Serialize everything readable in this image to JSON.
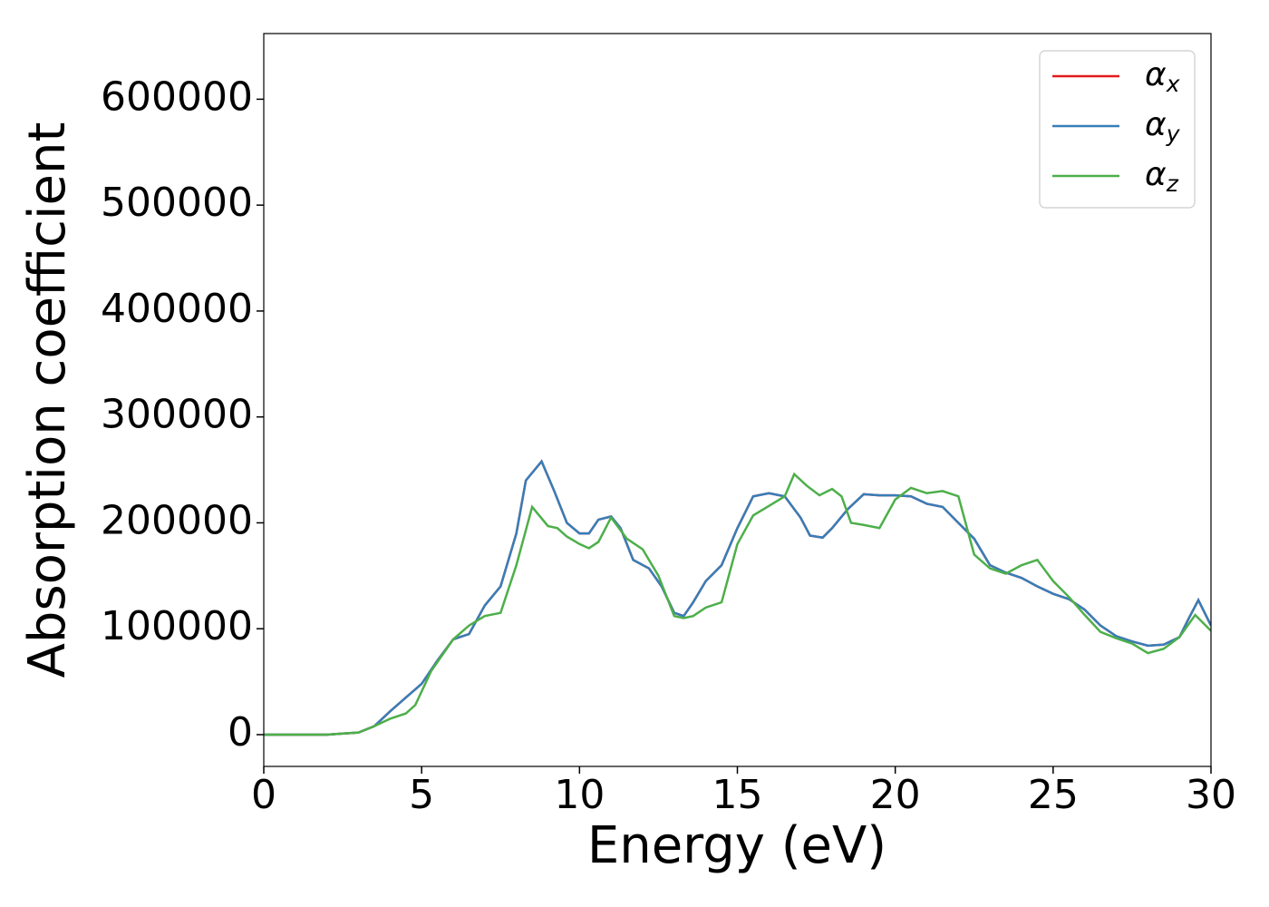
{
  "chart_data": {
    "type": "line",
    "xlabel": "Energy (eV)",
    "ylabel": "Absorption coefficient",
    "xlim": [
      0,
      30
    ],
    "xticks": [
      0,
      5,
      10,
      15,
      20,
      25,
      30
    ],
    "ylim": [
      -30000,
      662000
    ],
    "yticks": [
      0,
      100000,
      200000,
      300000,
      400000,
      500000,
      600000
    ],
    "grid": false,
    "legend": "upper right",
    "series": [
      {
        "name": "αx",
        "color": "#e41a1c",
        "x": [
          0,
          2,
          3,
          3.5,
          4,
          4.5,
          5,
          5.5,
          6,
          6.5,
          7,
          7.5,
          8,
          8.3,
          8.8,
          9.2,
          9.6,
          10,
          10.3,
          10.6,
          11,
          11.3,
          11.7,
          12.2,
          12.6,
          13,
          13.3,
          13.6,
          14,
          14.5,
          15,
          15.5,
          16,
          16.5,
          17,
          17.3,
          17.7,
          18,
          18.5,
          19,
          19.5,
          20,
          20.5,
          21,
          21.5,
          22,
          22.5,
          23,
          23.5,
          24,
          24.5,
          25,
          25.5,
          26,
          26.5,
          27,
          27.5,
          28,
          28.5,
          29,
          29.3,
          29.6,
          30
        ],
        "values": [
          0,
          0,
          2000,
          8000,
          22000,
          35000,
          48000,
          70000,
          90000,
          95000,
          122000,
          140000,
          190000,
          240000,
          258000,
          230000,
          200000,
          190000,
          190000,
          203000,
          206000,
          195000,
          165000,
          157000,
          140000,
          115000,
          112000,
          125000,
          145000,
          160000,
          195000,
          225000,
          228000,
          225000,
          205000,
          188000,
          186000,
          195000,
          213000,
          227000,
          226000,
          226000,
          225000,
          218000,
          215000,
          200000,
          185000,
          160000,
          153000,
          148000,
          140000,
          133000,
          128000,
          118000,
          103000,
          93000,
          88000,
          84000,
          85000,
          92000,
          110000,
          127000,
          103000
        ]
      },
      {
        "name": "αy",
        "color": "#377eb8",
        "x": [
          0,
          2,
          3,
          3.5,
          4,
          4.5,
          5,
          5.5,
          6,
          6.5,
          7,
          7.5,
          8,
          8.3,
          8.8,
          9.2,
          9.6,
          10,
          10.3,
          10.6,
          11,
          11.3,
          11.7,
          12.2,
          12.6,
          13,
          13.3,
          13.6,
          14,
          14.5,
          15,
          15.5,
          16,
          16.5,
          17,
          17.3,
          17.7,
          18,
          18.5,
          19,
          19.5,
          20,
          20.5,
          21,
          21.5,
          22,
          22.5,
          23,
          23.5,
          24,
          24.5,
          25,
          25.5,
          26,
          26.5,
          27,
          27.5,
          28,
          28.5,
          29,
          29.3,
          29.6,
          30
        ],
        "values": [
          0,
          0,
          2000,
          8000,
          22000,
          35000,
          48000,
          70000,
          90000,
          95000,
          122000,
          140000,
          190000,
          240000,
          258000,
          230000,
          200000,
          190000,
          190000,
          203000,
          206000,
          195000,
          165000,
          157000,
          140000,
          115000,
          112000,
          125000,
          145000,
          160000,
          195000,
          225000,
          228000,
          225000,
          205000,
          188000,
          186000,
          195000,
          213000,
          227000,
          226000,
          226000,
          225000,
          218000,
          215000,
          200000,
          185000,
          160000,
          153000,
          148000,
          140000,
          133000,
          128000,
          118000,
          103000,
          93000,
          88000,
          84000,
          85000,
          92000,
          110000,
          127000,
          103000
        ]
      },
      {
        "name": "αz",
        "color": "#4daf4a",
        "x": [
          0,
          2,
          3,
          3.5,
          4,
          4.5,
          4.8,
          5.3,
          6,
          6.5,
          7,
          7.5,
          8,
          8.5,
          9,
          9.3,
          9.6,
          10,
          10.3,
          10.6,
          11,
          11.5,
          12,
          12.5,
          13,
          13.3,
          13.6,
          14,
          14.5,
          15,
          15.5,
          16,
          16.5,
          16.8,
          17.2,
          17.6,
          18,
          18.3,
          18.6,
          19,
          19.5,
          20,
          20.5,
          21,
          21.5,
          22,
          22.5,
          23,
          23.5,
          24,
          24.5,
          25,
          25.5,
          26,
          26.5,
          27,
          27.5,
          28,
          28.5,
          29,
          29.5,
          30
        ],
        "values": [
          0,
          0,
          2000,
          8000,
          15000,
          20000,
          28000,
          60000,
          90000,
          103000,
          112000,
          115000,
          160000,
          215000,
          197000,
          195000,
          187000,
          180000,
          176000,
          182000,
          205000,
          185000,
          175000,
          150000,
          112000,
          110000,
          112000,
          120000,
          125000,
          180000,
          207000,
          216000,
          225000,
          246000,
          235000,
          226000,
          232000,
          225000,
          200000,
          198000,
          195000,
          222000,
          233000,
          228000,
          230000,
          225000,
          170000,
          157000,
          152000,
          160000,
          165000,
          145000,
          130000,
          113000,
          97000,
          91000,
          86000,
          77000,
          81000,
          92000,
          113000,
          98000
        ]
      }
    ]
  }
}
